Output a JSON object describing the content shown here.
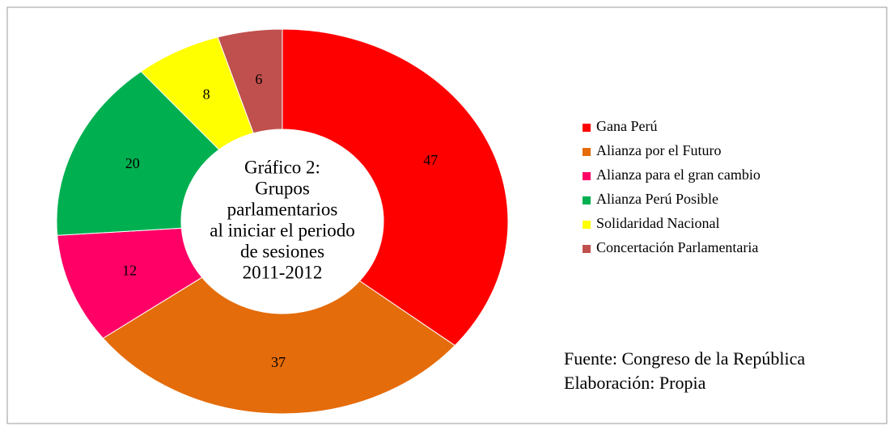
{
  "chart_data": {
    "type": "donut",
    "title": [
      "Gráfico 2:",
      "Grupos",
      "parlamentarios",
      "al iniciar  el periodo",
      "de sesiones",
      "2011-2012"
    ],
    "categories": [
      "Gana Perú",
      "Alianza por el Futuro",
      "Alianza para el gran cambio",
      "Alianza Perú Posible",
      "Solidaridad Nacional",
      "Concertación Parlamentaria"
    ],
    "values": [
      47,
      37,
      12,
      20,
      8,
      6
    ],
    "colors": [
      "#ff0000",
      "#e46c0a",
      "#ff0066",
      "#00b050",
      "#ffff00",
      "#c0504d"
    ],
    "legend": "right",
    "annotations": [
      "Fuente: Congreso de la República",
      "Elaboración: Propia"
    ]
  }
}
